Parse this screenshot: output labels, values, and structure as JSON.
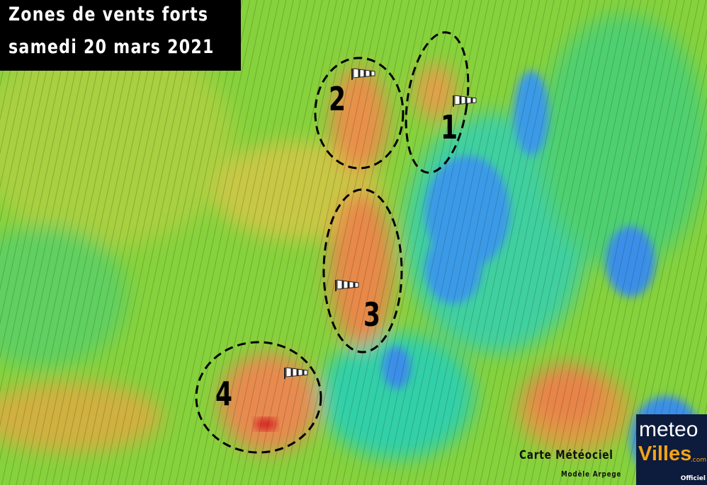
{
  "title": {
    "line1": "Zones de vents forts",
    "line2": "samedi 20 mars 2021"
  },
  "zones": [
    {
      "label": "2"
    },
    {
      "label": "1"
    },
    {
      "label": "3"
    },
    {
      "label": "4"
    }
  ],
  "credits": {
    "line1": "Carte Météociel",
    "line2": "Modèle Arpege"
  },
  "logo": {
    "line1": "meteo",
    "line2": "Villes",
    "suffix": ".com",
    "badge": "Officiel"
  },
  "colors": {
    "weak": "#7fd23a",
    "moderate": "#d9c83a",
    "strong": "#e8834a",
    "very_strong": "#d82020",
    "calm": "#2f8fe8"
  },
  "icons": {
    "windsock": "windsock-icon"
  }
}
